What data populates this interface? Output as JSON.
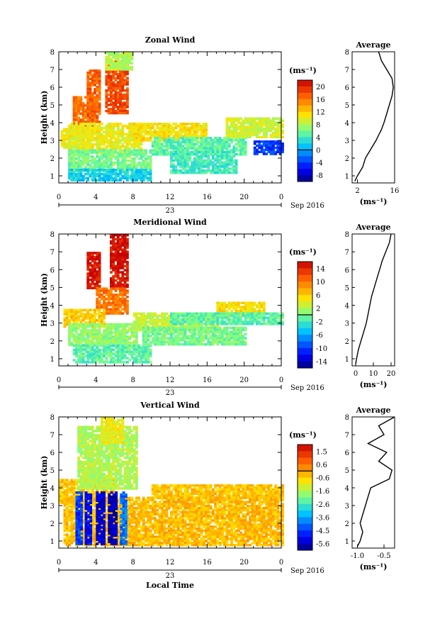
{
  "chart_data": [
    {
      "type": "heatmap",
      "title": "Zonal Wind",
      "ylabel": "Height (km)",
      "x_ticks": [
        "0",
        "4",
        "8",
        "12",
        "16",
        "20",
        "0"
      ],
      "y_ticks": [
        "1",
        "2",
        "3",
        "4",
        "5",
        "6",
        "7",
        "8"
      ],
      "xlim": [
        0,
        24
      ],
      "ylim": [
        0.6,
        8
      ],
      "date_label": "23",
      "date_suffix": "Sep 2016",
      "colorbar": {
        "unit": "(ms⁻¹)",
        "ticks": [
          "20",
          "16",
          "12",
          "8",
          "4",
          "0",
          "-4",
          "-8"
        ],
        "range": [
          -10,
          22
        ]
      },
      "average": {
        "title": "Average",
        "x_ticks": [
          "2",
          "16"
        ],
        "xlim": [
          0,
          16
        ],
        "xlabel": "(ms⁻¹)",
        "profile": [
          [
            0.7,
            1
          ],
          [
            1.0,
            2
          ],
          [
            1.5,
            4
          ],
          [
            2.0,
            5
          ],
          [
            2.5,
            7
          ],
          [
            3.0,
            9
          ],
          [
            3.3,
            10
          ],
          [
            3.6,
            11
          ],
          [
            4.0,
            12
          ],
          [
            4.5,
            13
          ],
          [
            5.0,
            14
          ],
          [
            5.5,
            15
          ],
          [
            6.0,
            15.5
          ],
          [
            6.5,
            15
          ],
          [
            7.0,
            13
          ],
          [
            7.5,
            11
          ],
          [
            8.0,
            10
          ]
        ]
      },
      "regions": [
        {
          "x": [
            0.2,
            3.5
          ],
          "y": [
            2.6,
            3.7
          ],
          "v": 10
        },
        {
          "x": [
            1.5,
            4.0
          ],
          "y": [
            3.5,
            5.5
          ],
          "v": 16
        },
        {
          "x": [
            3.0,
            4.5
          ],
          "y": [
            4.0,
            7.0
          ],
          "v": 17
        },
        {
          "x": [
            5.0,
            7.5
          ],
          "y": [
            4.5,
            7.5
          ],
          "v": 18
        },
        {
          "x": [
            1.0,
            9.0
          ],
          "y": [
            2.3,
            4.0
          ],
          "v": 10
        },
        {
          "x": [
            1.0,
            10.0
          ],
          "y": [
            1.3,
            2.5
          ],
          "v": 6
        },
        {
          "x": [
            1.0,
            10.0
          ],
          "y": [
            0.8,
            1.4
          ],
          "v": 2
        },
        {
          "x": [
            8.0,
            16.0
          ],
          "y": [
            3.0,
            4.0
          ],
          "v": 11
        },
        {
          "x": [
            10.0,
            20.0
          ],
          "y": [
            2.2,
            3.2
          ],
          "v": 5
        },
        {
          "x": [
            12.0,
            19.0
          ],
          "y": [
            1.2,
            2.4
          ],
          "v": 4
        },
        {
          "x": [
            18.0,
            24.0
          ],
          "y": [
            3.2,
            4.3
          ],
          "v": 9
        },
        {
          "x": [
            21.0,
            24.0
          ],
          "y": [
            2.2,
            3.0
          ],
          "v": -4
        },
        {
          "x": [
            5.0,
            8.0
          ],
          "y": [
            7.0,
            8.0
          ],
          "v": 8
        }
      ]
    },
    {
      "type": "heatmap",
      "title": "Meridional Wind",
      "ylabel": "Height (km)",
      "x_ticks": [
        "0",
        "4",
        "8",
        "12",
        "16",
        "20",
        "0"
      ],
      "y_ticks": [
        "1",
        "2",
        "3",
        "4",
        "5",
        "6",
        "7",
        "8"
      ],
      "xlim": [
        0,
        24
      ],
      "ylim": [
        0.6,
        8
      ],
      "date_label": "23",
      "date_suffix": "Sep 2016",
      "colorbar": {
        "unit": "(ms⁻¹)",
        "ticks": [
          "14",
          "10",
          "6",
          "2",
          "-2",
          "-6",
          "-10",
          "-14"
        ],
        "range": [
          -16,
          16
        ]
      },
      "average": {
        "title": "Average",
        "x_ticks": [
          "0",
          "10",
          "20"
        ],
        "xlim": [
          -2,
          22
        ],
        "xlabel": "(ms⁻¹)",
        "profile": [
          [
            0.7,
            0
          ],
          [
            1.0,
            0.5
          ],
          [
            1.5,
            1.5
          ],
          [
            2.0,
            3
          ],
          [
            2.5,
            4.5
          ],
          [
            3.0,
            6
          ],
          [
            3.5,
            7
          ],
          [
            4.0,
            8
          ],
          [
            4.5,
            9
          ],
          [
            5.0,
            10.5
          ],
          [
            5.5,
            12
          ],
          [
            6.0,
            13.5
          ],
          [
            6.5,
            15
          ],
          [
            7.0,
            17
          ],
          [
            7.5,
            19
          ],
          [
            8.0,
            20
          ]
        ]
      },
      "regions": [
        {
          "x": [
            3.0,
            4.5
          ],
          "y": [
            5.0,
            7.0
          ],
          "v": 15
        },
        {
          "x": [
            5.5,
            7.5
          ],
          "y": [
            5.0,
            8.0
          ],
          "v": 15
        },
        {
          "x": [
            4.0,
            7.5
          ],
          "y": [
            3.5,
            5.0
          ],
          "v": 10
        },
        {
          "x": [
            0.5,
            5.0
          ],
          "y": [
            2.8,
            3.8
          ],
          "v": 6
        },
        {
          "x": [
            1.0,
            8.5
          ],
          "y": [
            1.8,
            3.0
          ],
          "v": 1
        },
        {
          "x": [
            1.5,
            10.0
          ],
          "y": [
            0.8,
            1.8
          ],
          "v": -1
        },
        {
          "x": [
            8.0,
            17.0
          ],
          "y": [
            2.6,
            3.6
          ],
          "v": 3
        },
        {
          "x": [
            9.0,
            20.0
          ],
          "y": [
            1.8,
            2.8
          ],
          "v": 0
        },
        {
          "x": [
            17.0,
            22.0
          ],
          "y": [
            3.5,
            4.2
          ],
          "v": 5
        },
        {
          "x": [
            12.0,
            24.0
          ],
          "y": [
            3.0,
            3.6
          ],
          "v": -1
        }
      ]
    },
    {
      "type": "heatmap",
      "title": "Vertical Wind",
      "ylabel": "Height (km)",
      "xlabel": "Local Time",
      "x_ticks": [
        "0",
        "4",
        "8",
        "12",
        "16",
        "20",
        "0"
      ],
      "y_ticks": [
        "1",
        "2",
        "3",
        "4",
        "5",
        "6",
        "7",
        "8"
      ],
      "xlim": [
        0,
        24
      ],
      "ylim": [
        0.6,
        8
      ],
      "date_label": "23",
      "date_suffix": "Sep 2016",
      "colorbar": {
        "unit": "(ms⁻¹)",
        "ticks": [
          "1.5",
          "0.6",
          "-0.6",
          "-1.6",
          "-2.6",
          "-3.6",
          "-4.5",
          "-5.6"
        ],
        "range": [
          -6,
          2
        ]
      },
      "average": {
        "title": "Average",
        "x_ticks": [
          "-1.0",
          "-0.5"
        ],
        "xlim": [
          -1.1,
          -0.3
        ],
        "xlabel": "(ms⁻¹)",
        "profile": [
          [
            0.7,
            -1.0
          ],
          [
            1.0,
            -0.95
          ],
          [
            1.5,
            -0.9
          ],
          [
            2.0,
            -0.95
          ],
          [
            2.5,
            -0.9
          ],
          [
            3.0,
            -0.85
          ],
          [
            3.5,
            -0.8
          ],
          [
            4.0,
            -0.75
          ],
          [
            4.5,
            -0.4
          ],
          [
            5.0,
            -0.35
          ],
          [
            5.5,
            -0.6
          ],
          [
            6.0,
            -0.45
          ],
          [
            6.5,
            -0.8
          ],
          [
            7.0,
            -0.5
          ],
          [
            7.5,
            -0.6
          ],
          [
            8.0,
            -0.3
          ]
        ]
      },
      "regions": [
        {
          "x": [
            0.5,
            24.0
          ],
          "y": [
            0.8,
            3.5
          ],
          "v": -0.3
        },
        {
          "x": [
            0.0,
            6.0
          ],
          "y": [
            3.0,
            4.5
          ],
          "v": -0.5
        },
        {
          "x": [
            2.0,
            8.5
          ],
          "y": [
            4.0,
            7.5
          ],
          "v": -1.5
        },
        {
          "x": [
            4.5,
            7.0
          ],
          "y": [
            6.5,
            8.0
          ],
          "v": -1.0
        },
        {
          "x": [
            1.8,
            2.3
          ],
          "y": [
            0.8,
            3.8
          ],
          "v": -4.5
        },
        {
          "x": [
            2.8,
            3.4
          ],
          "y": [
            0.8,
            3.8
          ],
          "v": -5.0
        },
        {
          "x": [
            4.0,
            4.8
          ],
          "y": [
            0.8,
            3.8
          ],
          "v": -5.3
        },
        {
          "x": [
            5.3,
            6.3
          ],
          "y": [
            0.8,
            3.8
          ],
          "v": -5.6
        },
        {
          "x": [
            6.6,
            7.2
          ],
          "y": [
            0.8,
            3.8
          ],
          "v": -4.0
        },
        {
          "x": [
            10.0,
            24.0
          ],
          "y": [
            3.5,
            4.2
          ],
          "v": -0.4
        }
      ]
    }
  ]
}
